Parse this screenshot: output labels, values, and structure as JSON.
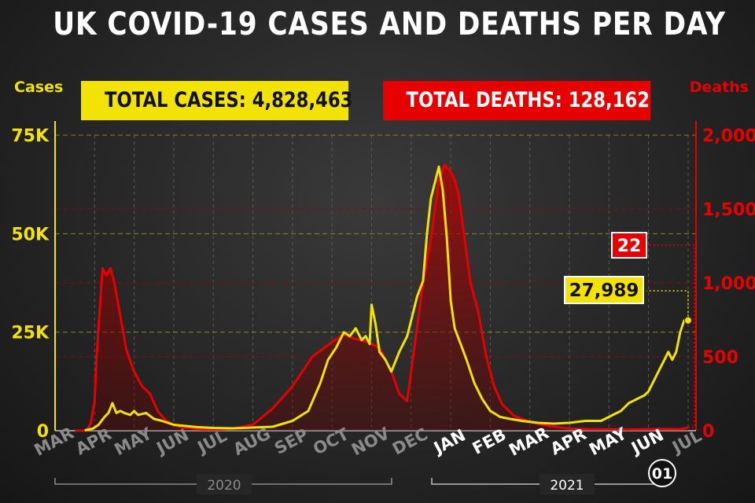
{
  "title": "UK COVID-19 CASES AND DEATHS PER DAY",
  "colors": {
    "cases": "#f2e205",
    "deaths": "#e60000",
    "background": "#262626",
    "grid_cases": "#8a8520",
    "grid_deaths": "#7a1010"
  },
  "total_cases_label": "TOTAL CASES: 4,828,463",
  "total_deaths_label": "TOTAL DEATHS: 128,162",
  "chart_data": {
    "type": "line",
    "ylabel_left": "Cases",
    "ylabel_right": "Deaths",
    "yticks_left": [
      "0",
      "25K",
      "50K",
      "75K"
    ],
    "yticks_right": [
      "0",
      "500",
      "1,000",
      "1,500",
      "2,000"
    ],
    "ylim_left": [
      0,
      75000
    ],
    "ylim_right": [
      0,
      2000
    ],
    "x_range_months": [
      0,
      16.2
    ],
    "month_labels": [
      "MAR",
      "APR",
      "MAY",
      "JUN",
      "JUL",
      "AUG",
      "SEP",
      "OCT",
      "NOV",
      "DEC",
      "JAN",
      "FEB",
      "MAR",
      "APR",
      "MAY",
      "JUN",
      "JUL"
    ],
    "year_labels": [
      "2020",
      "2021"
    ],
    "end_date_label": "01",
    "grid": true,
    "series": [
      {
        "name": "Cases",
        "axis": "left",
        "color": "#f2e205",
        "x": [
          0.75,
          0.95,
          1.1,
          1.25,
          1.35,
          1.45,
          1.55,
          1.65,
          1.75,
          1.9,
          2.0,
          2.1,
          2.3,
          2.5,
          2.7,
          3.0,
          3.3,
          3.6,
          4.0,
          4.5,
          5.0,
          5.5,
          6.0,
          6.4,
          6.7,
          6.9,
          7.1,
          7.3,
          7.45,
          7.6,
          7.75,
          7.85,
          7.95,
          8.0,
          8.1,
          8.2,
          8.35,
          8.5,
          8.7,
          8.9,
          9.05,
          9.15,
          9.3,
          9.4,
          9.5,
          9.6,
          9.7,
          9.8,
          9.9,
          10.0,
          10.1,
          10.25,
          10.4,
          10.6,
          10.8,
          11.0,
          11.25,
          11.5,
          11.8,
          12.2,
          12.6,
          13.0,
          13.4,
          13.8,
          14.1,
          14.3,
          14.5,
          14.7,
          14.9,
          15.0,
          15.1,
          15.2,
          15.3,
          15.4,
          15.5,
          15.6,
          15.7,
          15.8,
          15.9,
          16.0
        ],
        "y": [
          100,
          500,
          1500,
          3500,
          4500,
          7000,
          4500,
          5000,
          4500,
          4000,
          5000,
          4000,
          4500,
          3000,
          2500,
          1500,
          1200,
          900,
          700,
          600,
          800,
          1000,
          2500,
          5000,
          12000,
          18000,
          21000,
          25000,
          24000,
          26000,
          23000,
          24000,
          22000,
          32000,
          27000,
          20000,
          18000,
          15000,
          20000,
          24000,
          30000,
          34000,
          38000,
          50000,
          59000,
          63000,
          67000,
          61000,
          49000,
          33000,
          26000,
          22000,
          18000,
          12000,
          8000,
          5000,
          3500,
          3000,
          2500,
          2000,
          1800,
          2000,
          2500,
          2500,
          4000,
          5000,
          7000,
          8000,
          9000,
          10000,
          12000,
          14000,
          16000,
          18000,
          20000,
          18000,
          20000,
          25000,
          27989,
          27989
        ]
      },
      {
        "name": "Deaths",
        "axis": "right",
        "color": "#e60000",
        "x": [
          0.5,
          0.8,
          0.9,
          1.0,
          1.05,
          1.1,
          1.15,
          1.2,
          1.3,
          1.4,
          1.5,
          1.6,
          1.7,
          1.8,
          1.9,
          2.0,
          2.2,
          2.4,
          2.6,
          2.8,
          3.0,
          3.2,
          3.4,
          3.6,
          3.8,
          4.0,
          4.3,
          4.6,
          5.0,
          5.5,
          6.0,
          6.5,
          7.0,
          7.3,
          7.6,
          7.9,
          8.2,
          8.5,
          8.7,
          8.9,
          9.1,
          9.3,
          9.5,
          9.7,
          9.85,
          10.0,
          10.1,
          10.2,
          10.3,
          10.4,
          10.5,
          10.7,
          10.9,
          11.1,
          11.3,
          11.6,
          12.0,
          12.5,
          13.0,
          13.5,
          14.0,
          14.5,
          15.0,
          15.5,
          15.8,
          16.0
        ],
        "y": [
          0,
          0,
          50,
          200,
          500,
          700,
          900,
          1100,
          1050,
          1100,
          1000,
          850,
          700,
          550,
          470,
          400,
          300,
          250,
          130,
          70,
          40,
          20,
          20,
          10,
          8,
          8,
          10,
          20,
          40,
          150,
          300,
          500,
          600,
          650,
          620,
          600,
          560,
          400,
          250,
          200,
          600,
          1000,
          1300,
          1700,
          1800,
          1750,
          1700,
          1600,
          1400,
          1200,
          1000,
          800,
          500,
          300,
          180,
          100,
          60,
          30,
          15,
          10,
          10,
          8,
          10,
          12,
          10,
          22
        ]
      }
    ],
    "annotations": [
      {
        "series": "Cases",
        "text": "27,989"
      },
      {
        "series": "Deaths",
        "text": "22"
      }
    ]
  }
}
